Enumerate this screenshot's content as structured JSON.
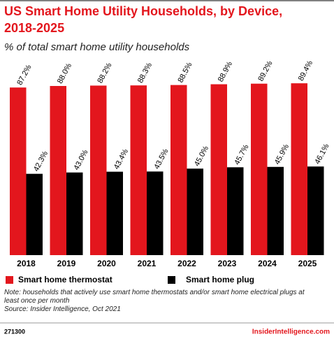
{
  "chart_data": {
    "type": "bar",
    "title": "US Smart Home Utility Households, by Device, 2018-2025",
    "subtitle": "% of total smart home utility households",
    "categories": [
      "2018",
      "2019",
      "2020",
      "2021",
      "2022",
      "2023",
      "2024",
      "2025"
    ],
    "series": [
      {
        "name": "Smart home thermostat",
        "color": "#e3161d",
        "values": [
          87.2,
          88.0,
          88.2,
          88.3,
          88.5,
          88.9,
          89.2,
          89.4
        ],
        "value_labels": [
          "87.2%",
          "88.0%",
          "88.2%",
          "88.3%",
          "88.5%",
          "88.9%",
          "89.2%",
          "89.4%"
        ]
      },
      {
        "name": "Smart home plug",
        "color": "#000000",
        "values": [
          42.3,
          43.0,
          43.4,
          43.5,
          45.0,
          45.7,
          45.9,
          46.1
        ],
        "value_labels": [
          "42.3%",
          "43.0%",
          "43.4%",
          "43.5%",
          "45.0%",
          "45.7%",
          "45.9%",
          "46.1%"
        ]
      }
    ],
    "note": "Note: households that actively use smart home thermostats and/or smart home electrical plugs at least once per month",
    "source": "Source: Insider Intelligence, Oct 2021",
    "chart_id": "271300",
    "brand": "InsiderIntelligence.com"
  }
}
